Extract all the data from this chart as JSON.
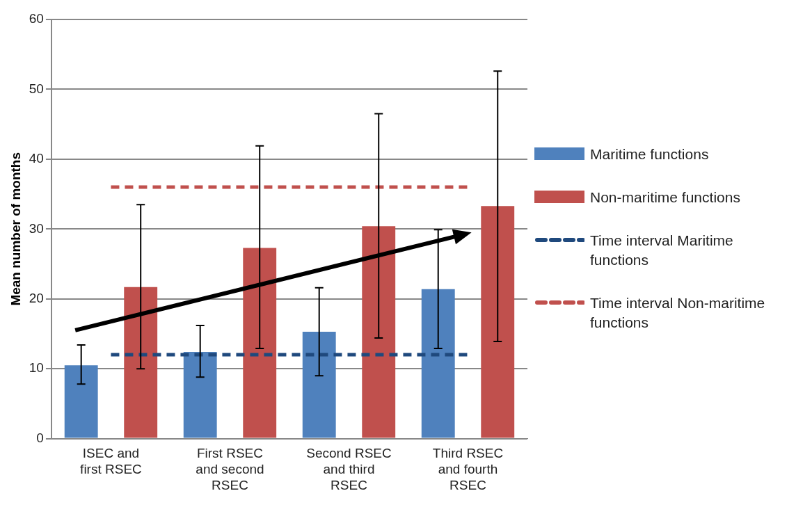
{
  "chart_data": {
    "type": "bar",
    "ylabel": "Mean number of months",
    "categories": [
      "ISEC and first RSEC",
      "First RSEC and second RSEC",
      "Second RSEC and third RSEC",
      "Third RSEC and fourth RSEC"
    ],
    "series": [
      {
        "name": "Maritime functions",
        "color": "#4f81bd",
        "values": [
          10.5,
          12.4,
          15.3,
          21.4
        ],
        "errors": [
          [
            7.8,
            13.4
          ],
          [
            8.8,
            16.2
          ],
          [
            9.0,
            21.6
          ],
          [
            12.9,
            29.9
          ]
        ]
      },
      {
        "name": "Non-maritime functions",
        "color": "#c0504d",
        "values": [
          21.7,
          27.3,
          30.4,
          33.3
        ],
        "errors": [
          [
            10.0,
            33.5
          ],
          [
            12.9,
            41.9
          ],
          [
            14.4,
            46.5
          ],
          [
            13.9,
            52.6
          ]
        ]
      },
      {
        "name": "Time interval Maritime functions",
        "type": "line",
        "color": "#1f497d",
        "line_style": "dashed",
        "marker": "none",
        "values": [
          12,
          12,
          12,
          12
        ]
      },
      {
        "name": "Time interval Non-maritime functions",
        "type": "line",
        "color": "#c0504d",
        "line_style": "dashed",
        "marker": "none",
        "values": [
          36,
          36,
          36,
          36
        ]
      }
    ],
    "ylim": [
      0,
      60
    ],
    "yticks": [
      0,
      10,
      20,
      30,
      40,
      50,
      60
    ],
    "grid": "y",
    "legend": "right"
  }
}
